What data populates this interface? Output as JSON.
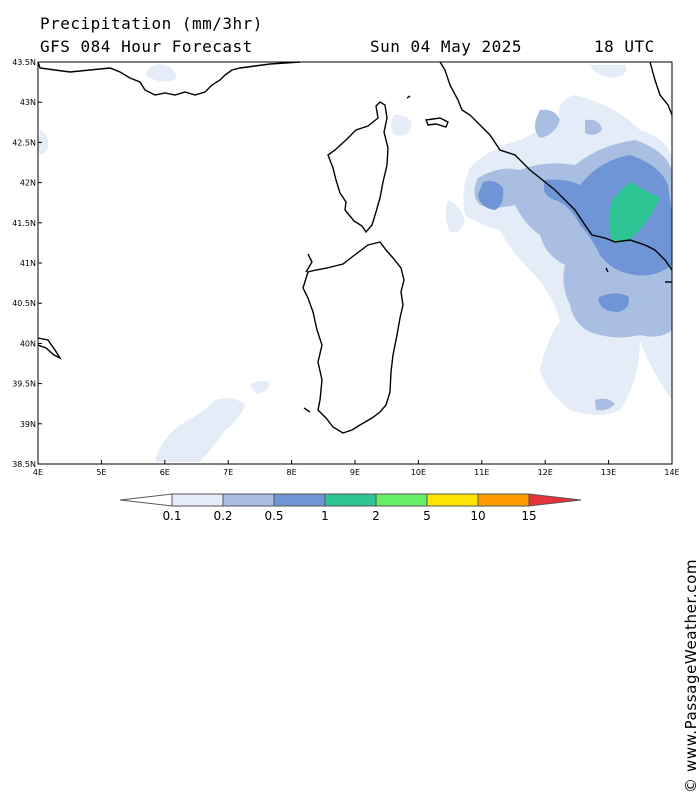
{
  "header": {
    "title": "Precipitation (mm/3hr)",
    "subtitle": "GFS 084 Hour Forecast",
    "date": "Sun 04 May 2025",
    "time": "18 UTC"
  },
  "credit": "© www.PassageWeather.com",
  "map": {
    "lon_range": [
      4,
      14
    ],
    "lat_range": [
      38.5,
      43.5
    ],
    "lon_ticks": [
      "4E",
      "5E",
      "6E",
      "7E",
      "8E",
      "9E",
      "10E",
      "11E",
      "12E",
      "13E",
      "14E"
    ],
    "lat_ticks": [
      "43.5N",
      "43N",
      "42.5N",
      "42N",
      "41.5N",
      "41N",
      "40.5N",
      "40N",
      "39.5N",
      "39N",
      "38.5N"
    ],
    "islands": [
      "Corsica",
      "Sardinia"
    ]
  },
  "legend": {
    "labels": [
      "0.1",
      "0.2",
      "0.5",
      "1",
      "2",
      "5",
      "10",
      "15"
    ],
    "colors": [
      "#ffffff",
      "#e4ecf8",
      "#a9bfe2",
      "#6f95d6",
      "#2ec494",
      "#66ee66",
      "#ffe600",
      "#ff9a00",
      "#e8323a"
    ]
  }
}
